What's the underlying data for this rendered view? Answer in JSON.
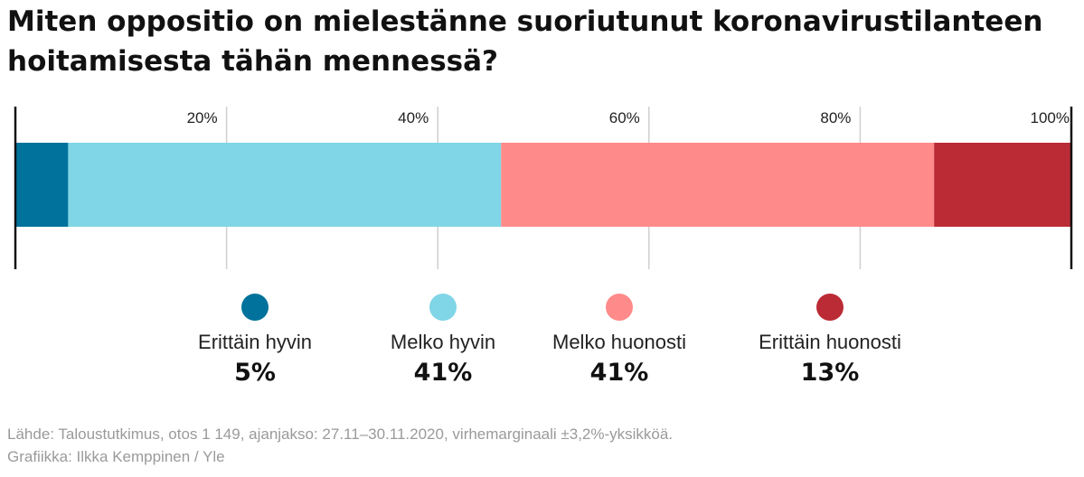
{
  "title": "Miten oppositio on mielestänne suoriutunut koronavirustilanteen hoitamisesta tähän mennessä?",
  "chart_data": {
    "type": "bar",
    "orientation": "horizontal-stacked",
    "xlim": [
      0,
      100
    ],
    "ticks": [
      {
        "value": 20,
        "label": "20%"
      },
      {
        "value": 40,
        "label": "40%"
      },
      {
        "value": 60,
        "label": "60%"
      },
      {
        "value": 80,
        "label": "80%"
      },
      {
        "value": 100,
        "label": "100%"
      }
    ],
    "grid": true,
    "legend_position": "bottom",
    "series": [
      {
        "name": "Erittäin hyvin",
        "value": 5,
        "value_label": "5%",
        "color": "#00729b"
      },
      {
        "name": "Melko hyvin",
        "value": 41,
        "value_label": "41%",
        "color": "#80d5e6"
      },
      {
        "name": "Melko huonosti",
        "value": 41,
        "value_label": "41%",
        "color": "#ff8a8a"
      },
      {
        "name": "Erittäin huonosti",
        "value": 13,
        "value_label": "13%",
        "color": "#bb2b35"
      }
    ]
  },
  "footer": {
    "source": "Lähde: Taloustutkimus, otos 1 149, ajanjakso: 27.11–30.11.2020, virhemarginaali ±3,2%-yksikköä.",
    "credit": "Grafiikka: Ilkka Kemppinen / Yle"
  }
}
